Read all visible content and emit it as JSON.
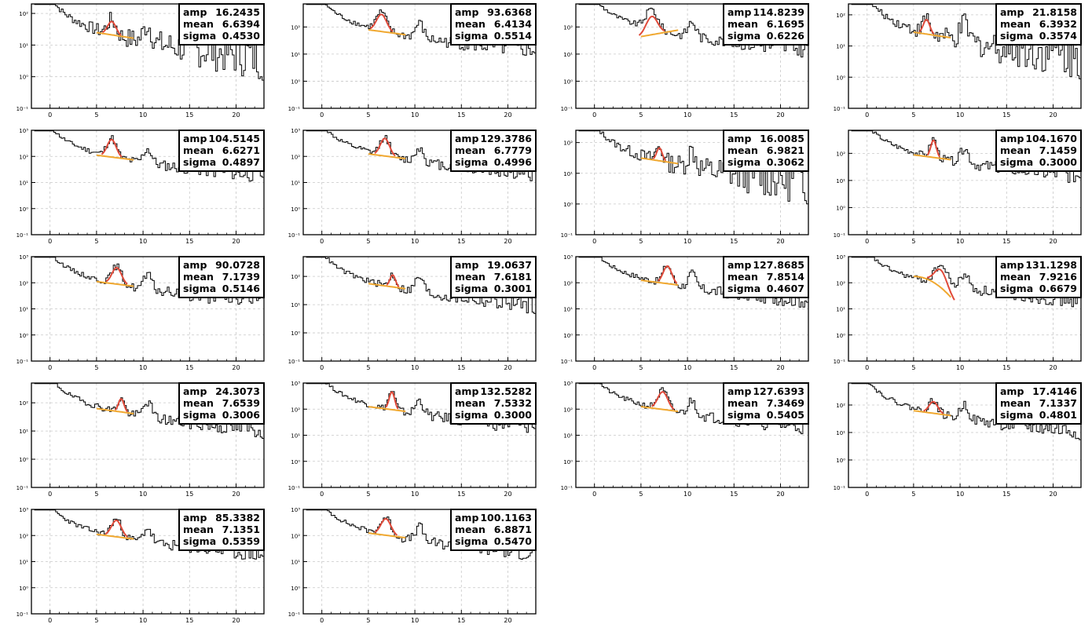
{
  "chart_data": {
    "type": "histogram-grid",
    "x_range": [
      -2,
      23
    ],
    "y_scale": "log",
    "x_ticks": [
      0,
      5,
      10,
      15,
      20
    ],
    "y_tick_labels": {
      "-1": "10⁻¹",
      "0": "10⁰",
      "1": "10¹",
      "2": "10²",
      "3": "10³"
    },
    "grid": true,
    "fit_colors": {
      "gaussian": "#e04a3a",
      "background": "#f0a830",
      "histogram": "#000000"
    },
    "stat_labels": {
      "amp": "amp",
      "mean": "mean",
      "sigma": "sigma"
    },
    "panels": [
      {
        "amp": "16.2435",
        "mean": "6.6394",
        "sigma": "0.4530",
        "ymin_exp": -1,
        "ymax_exp": 2.3,
        "start": 2.2,
        "bump": 1.0
      },
      {
        "amp": "93.6368",
        "mean": "6.4134",
        "sigma": "0.5514",
        "ymin_exp": -1,
        "ymax_exp": 2.85,
        "start": 2.7,
        "bump": 1.5
      },
      {
        "amp": "114.8239",
        "mean": "6.1695",
        "sigma": "0.6226",
        "ymin_exp": -1,
        "ymax_exp": 2.85,
        "start": 2.75,
        "bump": 1.6
      },
      {
        "amp": "21.8158",
        "mean": "6.3932",
        "sigma": "0.3574",
        "ymin_exp": -1,
        "ymax_exp": 2.35,
        "start": 2.25,
        "bump": 1.1
      },
      {
        "amp": "104.5145",
        "mean": "6.6271",
        "sigma": "0.4897",
        "ymin_exp": -1,
        "ymax_exp": 3.0,
        "start": 2.85,
        "bump": 1.6
      },
      {
        "amp": "129.3786",
        "mean": "6.7779",
        "sigma": "0.4996",
        "ymin_exp": -1,
        "ymax_exp": 3.0,
        "start": 2.9,
        "bump": 1.6
      },
      {
        "amp": "16.0085",
        "mean": "6.9821",
        "sigma": "0.3062",
        "ymin_exp": -1,
        "ymax_exp": 2.4,
        "start": 2.3,
        "bump": 1.0
      },
      {
        "amp": "104.1670",
        "mean": "7.1459",
        "sigma": "0.3000",
        "ymin_exp": -1,
        "ymax_exp": 2.85,
        "start": 2.75,
        "bump": 1.5
      },
      {
        "amp": "90.0728",
        "mean": "7.1739",
        "sigma": "0.5146",
        "ymin_exp": -1,
        "ymax_exp": 3.0,
        "start": 2.85,
        "bump": 1.5
      },
      {
        "amp": "19.0637",
        "mean": "7.6181",
        "sigma": "0.3001",
        "ymin_exp": -1,
        "ymax_exp": 2.7,
        "start": 2.55,
        "bump": 1.0
      },
      {
        "amp": "127.8685",
        "mean": "7.8514",
        "sigma": "0.4607",
        "ymin_exp": -1,
        "ymax_exp": 3.0,
        "start": 2.9,
        "bump": 1.6
      },
      {
        "amp": "131.1298",
        "mean": "7.9216",
        "sigma": "0.6679",
        "ymin_exp": -1,
        "ymax_exp": 3.0,
        "start": 2.9,
        "bump": 1.6
      },
      {
        "amp": "24.3073",
        "mean": "7.6539",
        "sigma": "0.3006",
        "ymin_exp": -1,
        "ymax_exp": 2.7,
        "start": 2.6,
        "bump": 1.1
      },
      {
        "amp": "132.5282",
        "mean": "7.5332",
        "sigma": "0.3000",
        "ymin_exp": -1,
        "ymax_exp": 3.0,
        "start": 2.9,
        "bump": 1.6
      },
      {
        "amp": "127.6393",
        "mean": "7.3469",
        "sigma": "0.5405",
        "ymin_exp": -1,
        "ymax_exp": 3.0,
        "start": 2.9,
        "bump": 1.6
      },
      {
        "amp": "17.4146",
        "mean": "7.1337",
        "sigma": "0.4801",
        "ymin_exp": -1,
        "ymax_exp": 2.8,
        "start": 2.6,
        "bump": 1.0
      },
      {
        "amp": "85.3382",
        "mean": "7.1351",
        "sigma": "0.5359",
        "ymin_exp": -1,
        "ymax_exp": 3.0,
        "start": 2.85,
        "bump": 1.5
      },
      {
        "amp": "100.1163",
        "mean": "6.8871",
        "sigma": "0.5470",
        "ymin_exp": -1,
        "ymax_exp": 3.0,
        "start": 2.9,
        "bump": 1.5
      }
    ]
  }
}
